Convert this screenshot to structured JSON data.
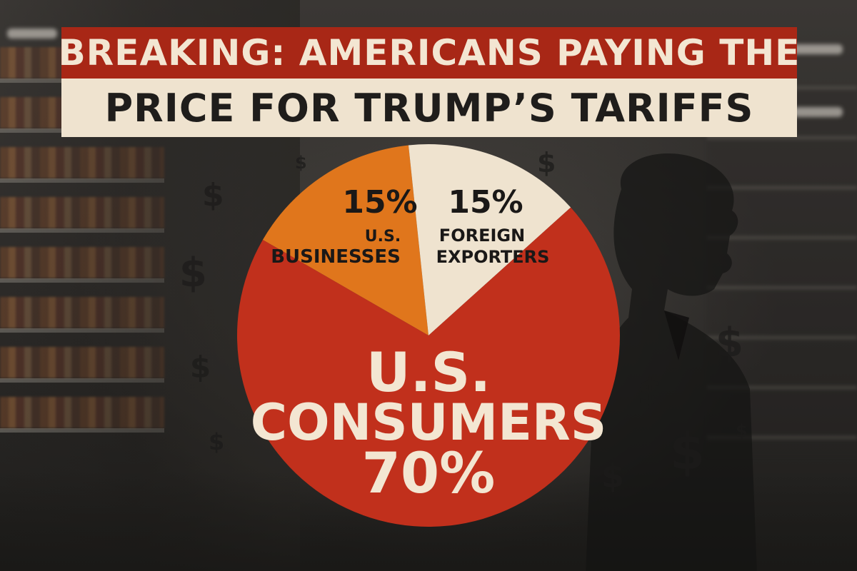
{
  "headline": {
    "line1": "BREAKING: AMERICANS PAYING THE",
    "line2": "PRICE FOR TRUMP’S TARIFFS"
  },
  "decor": {
    "dollar_symbol": "$",
    "silhouette": "person-silhouette-icon"
  },
  "colors": {
    "headline_red": "#a82716",
    "headline_cream": "#efe3cf",
    "consumers": "#c1301c",
    "businesses": "#e0761c",
    "exporters": "#efe3cf"
  },
  "chart_data": {
    "type": "pie",
    "title": "",
    "slices": [
      {
        "value": 15,
        "percent_label": "15%",
        "name_lines": [
          "U.S.",
          "BUSINESSES"
        ],
        "color": "#e0761c"
      },
      {
        "value": 15,
        "percent_label": "15%",
        "name_lines": [
          "FOREIGN",
          "EXPORTERS"
        ],
        "color": "#efe3cf"
      },
      {
        "value": 70,
        "percent_label": "70%",
        "name_lines": [
          "U.S.",
          "CONSUMERS"
        ],
        "color": "#c1301c"
      }
    ]
  }
}
